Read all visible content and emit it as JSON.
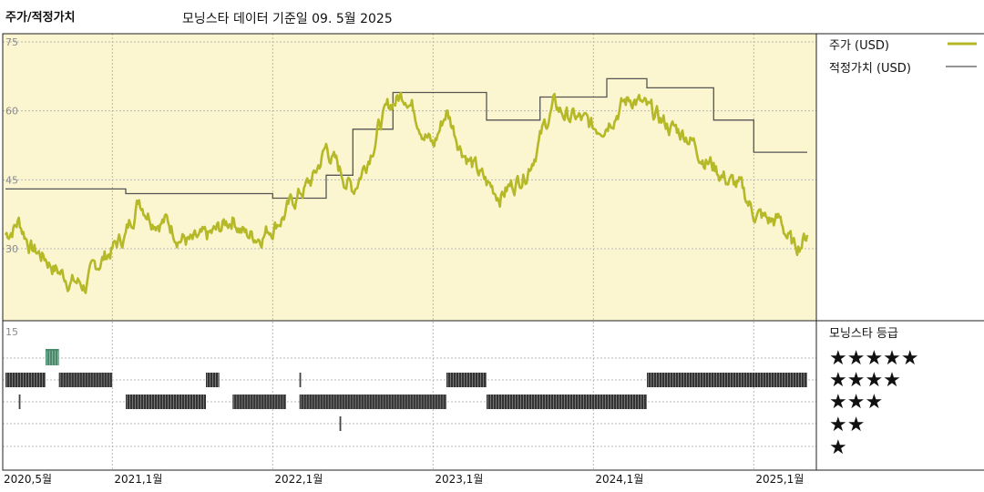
{
  "header": {
    "title": "주가/적정가치",
    "subtitle": "모닝스타 데이터 기준일 09. 5월 2025"
  },
  "legend": {
    "price": "주가 (USD)",
    "fair_value": "적정가치 (USD)",
    "rating_title": "모닝스타 등급",
    "stars": [
      "★★★★★",
      "★★★★",
      "★★★",
      "★★",
      "★"
    ]
  },
  "colors": {
    "price_line": "#b5b827",
    "fair_value_line": "#555555",
    "plot_bg": "#fbf6cf",
    "five_star_mark": "#4a8a6c",
    "rating_mark": "#333333"
  },
  "chart_data": [
    {
      "type": "line",
      "title": "",
      "y_ticks": [
        "75",
        "60",
        "45",
        "30"
      ],
      "ylim": [
        20,
        75
      ],
      "x_ticks": [
        "2020,5월",
        "2021,1월",
        "2022,1월",
        "2023,1월",
        "2024,1월",
        "2025,1월"
      ],
      "xlim": [
        "2020-05",
        "2025-05"
      ],
      "series": [
        {
          "name": "주가 (USD)",
          "x": [
            "2020-05",
            "2020-06",
            "2020-07",
            "2020-08",
            "2020-09",
            "2020-10",
            "2020-11",
            "2020-12",
            "2021-01",
            "2021-02",
            "2021-03",
            "2021-04",
            "2021-05",
            "2021-06",
            "2021-07",
            "2021-08",
            "2021-09",
            "2021-10",
            "2021-11",
            "2021-12",
            "2022-01",
            "2022-02",
            "2022-03",
            "2022-04",
            "2022-05",
            "2022-06",
            "2022-07",
            "2022-08",
            "2022-09",
            "2022-10",
            "2022-11",
            "2022-12",
            "2023-01",
            "2023-02",
            "2023-03",
            "2023-04",
            "2023-05",
            "2023-06",
            "2023-07",
            "2023-08",
            "2023-09",
            "2023-10",
            "2023-11",
            "2023-12",
            "2024-01",
            "2024-02",
            "2024-03",
            "2024-04",
            "2024-05",
            "2024-06",
            "2024-07",
            "2024-08",
            "2024-09",
            "2024-10",
            "2024-11",
            "2024-12",
            "2025-01",
            "2025-02",
            "2025-03",
            "2025-04",
            "2025-05"
          ],
          "values": [
            33,
            36,
            30,
            28,
            25,
            23,
            22,
            27,
            30,
            33,
            41,
            37,
            36,
            33,
            31,
            32,
            34,
            37,
            33,
            33,
            35,
            38,
            42,
            45,
            52,
            47,
            43,
            49,
            57,
            62,
            64,
            58,
            52,
            60,
            53,
            48,
            44,
            42,
            44,
            47,
            54,
            61,
            59,
            58,
            56,
            58,
            61,
            63,
            60,
            58,
            56,
            55,
            51,
            48,
            45,
            43,
            38,
            36,
            36,
            30,
            33
          ]
        },
        {
          "name": "적정가치 (USD)",
          "x": [
            "2020-05",
            "2021-02",
            "2021-02",
            "2022-01",
            "2022-01",
            "2022-05",
            "2022-05",
            "2022-07",
            "2022-07",
            "2022-10",
            "2022-10",
            "2023-05",
            "2023-05",
            "2023-09",
            "2023-09",
            "2024-02",
            "2024-02",
            "2024-05",
            "2024-05",
            "2024-10",
            "2024-10",
            "2025-01",
            "2025-01",
            "2025-05"
          ],
          "values": [
            43,
            43,
            42,
            42,
            41,
            41,
            46,
            46,
            56,
            56,
            64,
            64,
            58,
            58,
            63,
            63,
            67,
            67,
            65,
            65,
            58,
            58,
            51,
            51
          ]
        }
      ]
    },
    {
      "type": "heatmap",
      "title": "",
      "y_tick": "15",
      "rows": [
        "★★★★★",
        "★★★★",
        "★★★",
        "★★",
        "★"
      ],
      "periods": [
        {
          "stars": 4,
          "start": "2020-05",
          "end": "2020-08"
        },
        {
          "stars": 3,
          "start": "2020-06",
          "end": "2020-06"
        },
        {
          "stars": 5,
          "start": "2020-08",
          "end": "2020-09"
        },
        {
          "stars": 4,
          "start": "2020-09",
          "end": "2021-01"
        },
        {
          "stars": 3,
          "start": "2021-02",
          "end": "2021-08"
        },
        {
          "stars": 4,
          "start": "2021-08",
          "end": "2021-09"
        },
        {
          "stars": 3,
          "start": "2021-10",
          "end": "2022-02"
        },
        {
          "stars": 4,
          "start": "2022-03",
          "end": "2022-03"
        },
        {
          "stars": 3,
          "start": "2022-03",
          "end": "2023-02"
        },
        {
          "stars": 2,
          "start": "2022-06",
          "end": "2022-06"
        },
        {
          "stars": 4,
          "start": "2023-02",
          "end": "2023-05"
        },
        {
          "stars": 3,
          "start": "2023-05",
          "end": "2024-05"
        },
        {
          "stars": 4,
          "start": "2024-05",
          "end": "2025-05"
        }
      ]
    }
  ]
}
